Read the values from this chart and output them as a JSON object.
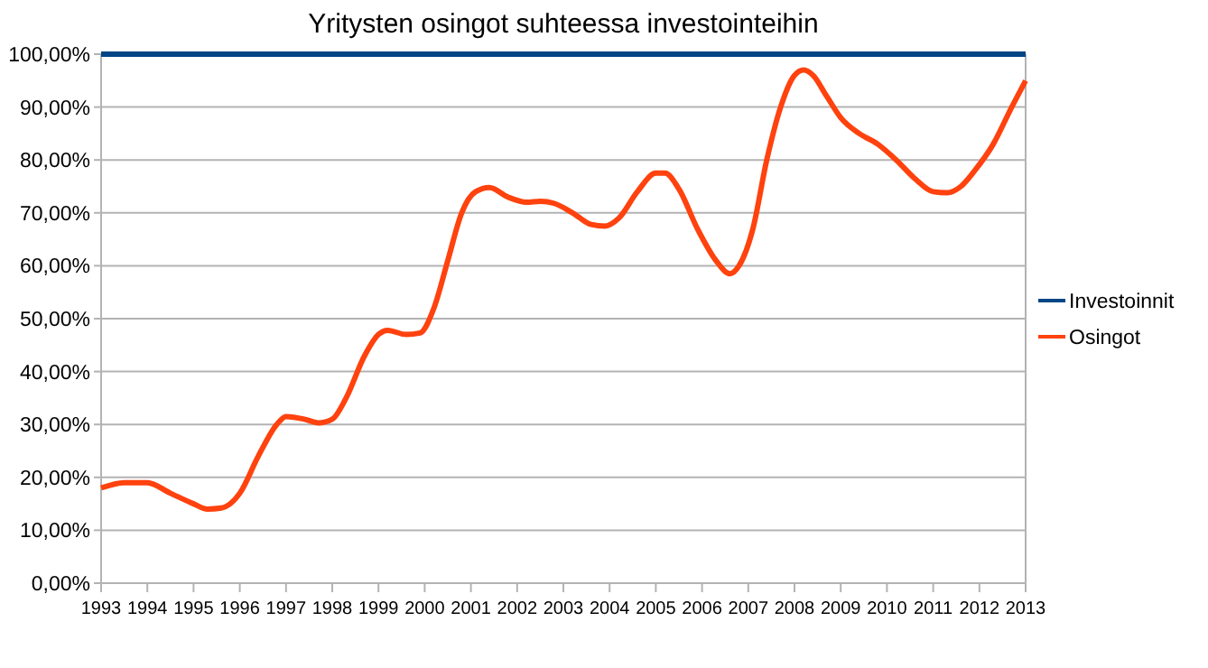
{
  "chart_data": {
    "type": "line",
    "title": "Yritysten osingot suhteessa investointeihin",
    "xlim": [
      1993,
      2013
    ],
    "xticks": [
      1993,
      1994,
      1995,
      1996,
      1997,
      1998,
      1999,
      2000,
      2001,
      2002,
      2003,
      2004,
      2005,
      2006,
      2007,
      2008,
      2009,
      2010,
      2011,
      2012,
      2013
    ],
    "ylim": [
      0,
      100
    ],
    "yticks": [
      {
        "value": 0,
        "label": "0,00%"
      },
      {
        "value": 10,
        "label": "10,00%"
      },
      {
        "value": 20,
        "label": "20,00%"
      },
      {
        "value": 30,
        "label": "30,00%"
      },
      {
        "value": 40,
        "label": "40,00%"
      },
      {
        "value": 50,
        "label": "50,00%"
      },
      {
        "value": 60,
        "label": "60,00%"
      },
      {
        "value": 70,
        "label": "70,00%"
      },
      {
        "value": 80,
        "label": "80,00%"
      },
      {
        "value": 90,
        "label": "90,00%"
      },
      {
        "value": 100,
        "label": "100,00%"
      }
    ],
    "grid": "y",
    "legend": "right",
    "marker": "none",
    "line_style": "solid",
    "series": [
      {
        "name": "Investoinnit",
        "color": "#004586",
        "x": [
          1993,
          2013
        ],
        "values": [
          100,
          100
        ]
      },
      {
        "name": "Osingot",
        "color": "#ff420e",
        "x": [
          1993,
          1993.5,
          1994,
          1994.5,
          1995,
          1995.3,
          1995.6,
          1996,
          1996.4,
          1996.8,
          1997,
          1997.4,
          1997.7,
          1998,
          1998.3,
          1998.7,
          1999,
          1999.2,
          1999.6,
          1999.9,
          2000.2,
          2000.5,
          2000.8,
          2001.1,
          2001.4,
          2001.8,
          2002.2,
          2002.5,
          2002.8,
          2003.2,
          2003.6,
          2003.9,
          2004.2,
          2004.6,
          2005,
          2005.2,
          2005.5,
          2005.9,
          2006.3,
          2006.6,
          2006.8,
          2007.1,
          2007.4,
          2007.7,
          2008,
          2008.2,
          2008.4,
          2008.7,
          2009,
          2009.4,
          2009.8,
          2010.2,
          2010.6,
          2011,
          2011.3,
          2011.6,
          2011.9,
          2012.3,
          2012.7,
          2013
        ],
        "values": [
          18,
          19,
          19,
          17,
          15,
          14,
          14.2,
          17,
          24,
          30,
          31.5,
          31,
          30.3,
          31,
          35,
          43,
          47,
          47.8,
          47,
          47.3,
          52,
          61,
          70,
          74,
          74.8,
          73,
          72,
          72.2,
          71.8,
          70,
          67.8,
          67.5,
          69,
          74,
          77.5,
          77.5,
          74.5,
          67,
          61,
          58.5,
          60,
          67,
          80,
          90,
          96,
          97,
          96,
          92,
          88,
          85,
          83,
          80,
          76.5,
          74,
          73.8,
          75,
          78,
          83,
          90,
          95
        ]
      }
    ]
  }
}
